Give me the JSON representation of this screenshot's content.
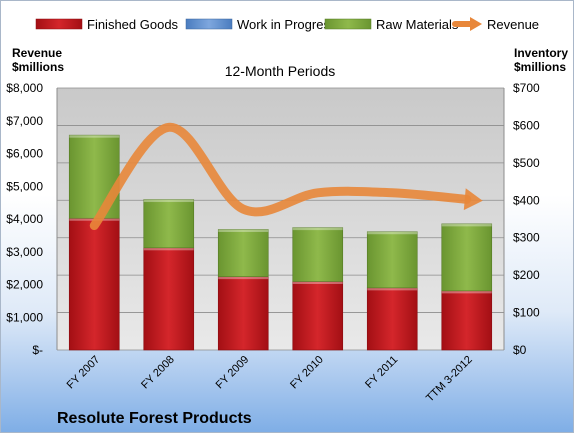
{
  "chart_data": {
    "type": "bar",
    "subtitle": "12-Month Periods",
    "company": "Resolute Forest Products",
    "categories": [
      "FY 2007",
      "FY 2008",
      "FY 2009",
      "FY 2010",
      "FY 2011",
      "TTM 3-2012"
    ],
    "series": [
      {
        "name": "Finished Goods",
        "axis": "right",
        "kind": "stacked-bar",
        "color": "#c0161c",
        "values": [
          352,
          273,
          196,
          183,
          166,
          158
        ]
      },
      {
        "name": "Work in Progress",
        "axis": "right",
        "kind": "stacked-bar",
        "color": "#5b8fd0",
        "values": [
          0,
          0,
          0,
          0,
          0,
          0
        ]
      },
      {
        "name": "Raw Materials",
        "axis": "right",
        "kind": "stacked-bar",
        "color": "#7fa83b",
        "values": [
          222,
          129,
          126,
          144,
          150,
          179
        ]
      },
      {
        "name": "Revenue",
        "axis": "left",
        "kind": "line",
        "color": "#e8873a",
        "values": [
          3800,
          6800,
          4300,
          4800,
          4800,
          4600
        ]
      }
    ],
    "left_axis": {
      "label_line1": "Revenue",
      "label_line2": "$millions",
      "ticks": [
        0,
        1000,
        2000,
        3000,
        4000,
        5000,
        6000,
        7000,
        8000
      ],
      "tick_labels": [
        "$-",
        "$1,000",
        "$2,000",
        "$3,000",
        "$4,000",
        "$5,000",
        "$6,000",
        "$7,000",
        "$8,000"
      ],
      "ylim": [
        0,
        8000
      ]
    },
    "right_axis": {
      "label_line1": "Inventory",
      "label_line2": "$millions",
      "ticks": [
        0,
        100,
        200,
        300,
        400,
        500,
        600,
        700
      ],
      "tick_labels": [
        "$0",
        "$100",
        "$200",
        "$300",
        "$400",
        "$500",
        "$600",
        "$700"
      ],
      "ylim": [
        0,
        700
      ]
    },
    "legend_position": "top",
    "grid": true
  }
}
